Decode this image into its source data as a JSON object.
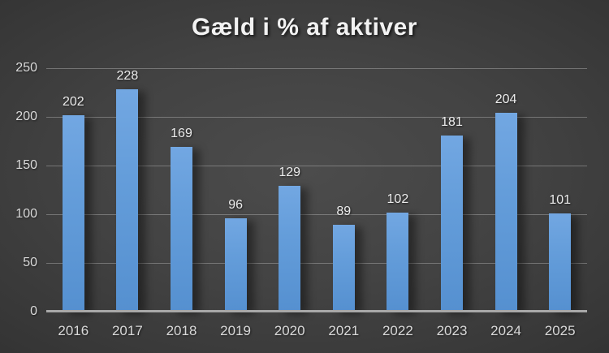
{
  "title": "Gæld i % af aktiver",
  "colors": {
    "background_center": "#4c4c4c",
    "background_edge": "#242424",
    "bar_top": "#72a7e2",
    "bar_bottom": "#5590d0",
    "gridline": "#bebebe",
    "axis_line": "#a8a8a8",
    "title_text": "#f2f2f2",
    "tick_text": "#d9d9d9",
    "data_label_text": "#ececec"
  },
  "chart_data": {
    "type": "bar",
    "title": "Gæld i % af aktiver",
    "categories": [
      "2016",
      "2017",
      "2018",
      "2019",
      "2020",
      "2021",
      "2022",
      "2023",
      "2024",
      "2025"
    ],
    "values": [
      202,
      228,
      169,
      96,
      129,
      89,
      102,
      181,
      204,
      101
    ],
    "xlabel": "",
    "ylabel": "",
    "ylim": [
      0,
      250
    ],
    "yticks": [
      0,
      50,
      100,
      150,
      200,
      250
    ],
    "grid": true,
    "legend": false,
    "data_labels": true,
    "background": "dark"
  }
}
